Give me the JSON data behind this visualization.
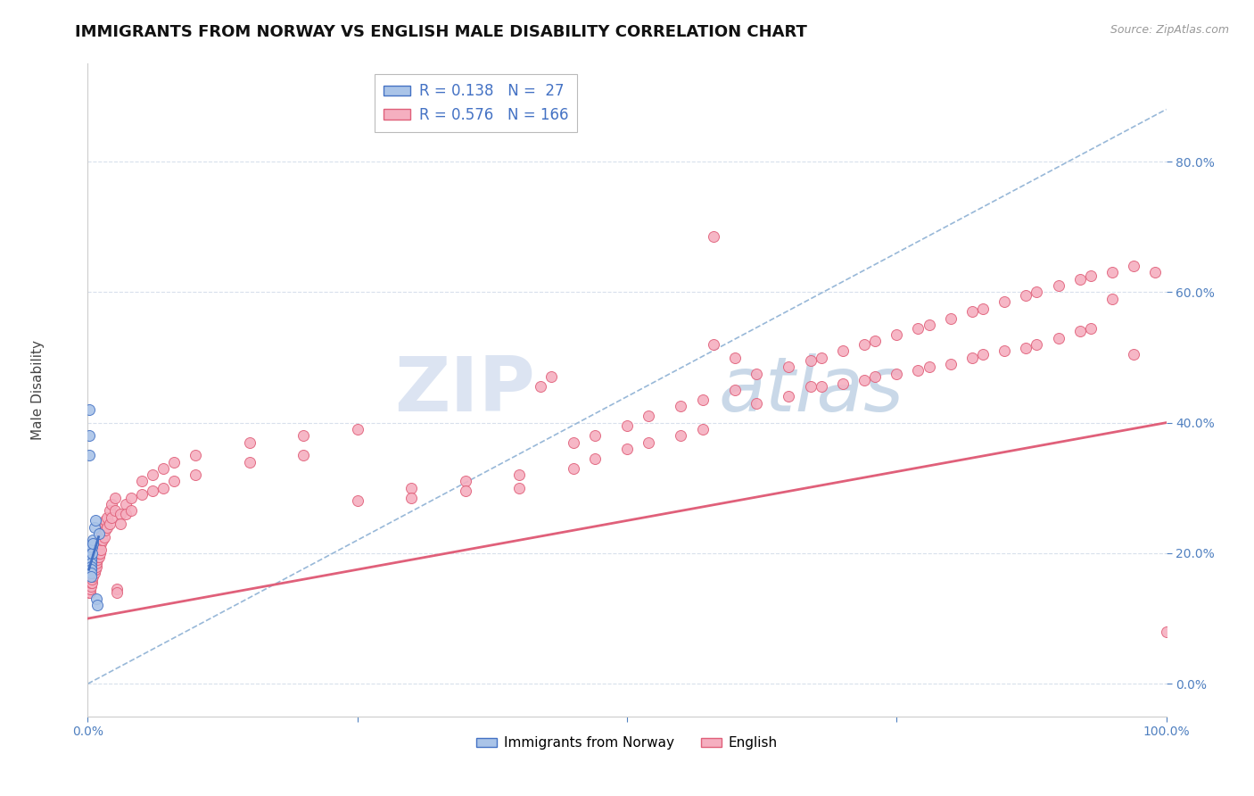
{
  "title": "IMMIGRANTS FROM NORWAY VS ENGLISH MALE DISABILITY CORRELATION CHART",
  "source": "Source: ZipAtlas.com",
  "ylabel": "Male Disability",
  "legend_labels": [
    "Immigrants from Norway",
    "English"
  ],
  "norway_R": 0.138,
  "norway_N": 27,
  "english_R": 0.576,
  "english_N": 166,
  "norway_color": "#aac4e8",
  "english_color": "#f5afc0",
  "norway_line_color": "#4472c4",
  "english_line_color": "#e0607a",
  "dashed_line_color": "#98b8d8",
  "norway_scatter": [
    [
      0.001,
      0.42
    ],
    [
      0.001,
      0.38
    ],
    [
      0.001,
      0.35
    ],
    [
      0.002,
      0.21
    ],
    [
      0.002,
      0.2
    ],
    [
      0.002,
      0.19
    ],
    [
      0.002,
      0.195
    ],
    [
      0.002,
      0.185
    ],
    [
      0.002,
      0.18
    ],
    [
      0.003,
      0.205
    ],
    [
      0.003,
      0.2
    ],
    [
      0.003,
      0.195
    ],
    [
      0.003,
      0.19
    ],
    [
      0.003,
      0.185
    ],
    [
      0.003,
      0.18
    ],
    [
      0.003,
      0.175
    ],
    [
      0.003,
      0.17
    ],
    [
      0.003,
      0.165
    ],
    [
      0.004,
      0.21
    ],
    [
      0.004,
      0.2
    ],
    [
      0.005,
      0.22
    ],
    [
      0.005,
      0.215
    ],
    [
      0.006,
      0.24
    ],
    [
      0.007,
      0.25
    ],
    [
      0.008,
      0.13
    ],
    [
      0.009,
      0.12
    ],
    [
      0.01,
      0.23
    ]
  ],
  "english_scatter": [
    [
      0.001,
      0.15
    ],
    [
      0.001,
      0.14
    ],
    [
      0.001,
      0.16
    ],
    [
      0.001,
      0.155
    ],
    [
      0.001,
      0.17
    ],
    [
      0.001,
      0.145
    ],
    [
      0.002,
      0.16
    ],
    [
      0.002,
      0.15
    ],
    [
      0.002,
      0.14
    ],
    [
      0.002,
      0.165
    ],
    [
      0.002,
      0.155
    ],
    [
      0.002,
      0.145
    ],
    [
      0.003,
      0.17
    ],
    [
      0.003,
      0.16
    ],
    [
      0.003,
      0.15
    ],
    [
      0.003,
      0.175
    ],
    [
      0.003,
      0.165
    ],
    [
      0.003,
      0.155
    ],
    [
      0.004,
      0.175
    ],
    [
      0.004,
      0.165
    ],
    [
      0.004,
      0.155
    ],
    [
      0.004,
      0.18
    ],
    [
      0.004,
      0.17
    ],
    [
      0.004,
      0.16
    ],
    [
      0.005,
      0.185
    ],
    [
      0.005,
      0.175
    ],
    [
      0.005,
      0.165
    ],
    [
      0.005,
      0.19
    ],
    [
      0.005,
      0.18
    ],
    [
      0.005,
      0.17
    ],
    [
      0.006,
      0.19
    ],
    [
      0.006,
      0.18
    ],
    [
      0.006,
      0.17
    ],
    [
      0.006,
      0.195
    ],
    [
      0.006,
      0.185
    ],
    [
      0.006,
      0.175
    ],
    [
      0.007,
      0.195
    ],
    [
      0.007,
      0.185
    ],
    [
      0.007,
      0.175
    ],
    [
      0.007,
      0.2
    ],
    [
      0.007,
      0.19
    ],
    [
      0.007,
      0.18
    ],
    [
      0.008,
      0.2
    ],
    [
      0.008,
      0.19
    ],
    [
      0.008,
      0.18
    ],
    [
      0.008,
      0.205
    ],
    [
      0.008,
      0.195
    ],
    [
      0.008,
      0.185
    ],
    [
      0.009,
      0.21
    ],
    [
      0.009,
      0.2
    ],
    [
      0.009,
      0.19
    ],
    [
      0.009,
      0.215
    ],
    [
      0.009,
      0.205
    ],
    [
      0.009,
      0.195
    ],
    [
      0.01,
      0.215
    ],
    [
      0.01,
      0.205
    ],
    [
      0.01,
      0.195
    ],
    [
      0.01,
      0.22
    ],
    [
      0.01,
      0.21
    ],
    [
      0.01,
      0.2
    ],
    [
      0.011,
      0.22
    ],
    [
      0.011,
      0.21
    ],
    [
      0.011,
      0.2
    ],
    [
      0.012,
      0.225
    ],
    [
      0.012,
      0.215
    ],
    [
      0.012,
      0.205
    ],
    [
      0.013,
      0.23
    ],
    [
      0.013,
      0.22
    ],
    [
      0.014,
      0.235
    ],
    [
      0.014,
      0.22
    ],
    [
      0.015,
      0.24
    ],
    [
      0.015,
      0.225
    ],
    [
      0.016,
      0.25
    ],
    [
      0.016,
      0.235
    ],
    [
      0.018,
      0.255
    ],
    [
      0.018,
      0.24
    ],
    [
      0.02,
      0.265
    ],
    [
      0.02,
      0.245
    ],
    [
      0.022,
      0.275
    ],
    [
      0.022,
      0.255
    ],
    [
      0.025,
      0.285
    ],
    [
      0.025,
      0.265
    ],
    [
      0.027,
      0.145
    ],
    [
      0.027,
      0.14
    ],
    [
      0.03,
      0.26
    ],
    [
      0.03,
      0.245
    ],
    [
      0.035,
      0.275
    ],
    [
      0.035,
      0.26
    ],
    [
      0.04,
      0.285
    ],
    [
      0.04,
      0.265
    ],
    [
      0.05,
      0.31
    ],
    [
      0.05,
      0.29
    ],
    [
      0.06,
      0.32
    ],
    [
      0.06,
      0.295
    ],
    [
      0.07,
      0.33
    ],
    [
      0.07,
      0.3
    ],
    [
      0.08,
      0.34
    ],
    [
      0.08,
      0.31
    ],
    [
      0.1,
      0.35
    ],
    [
      0.1,
      0.32
    ],
    [
      0.15,
      0.37
    ],
    [
      0.15,
      0.34
    ],
    [
      0.2,
      0.38
    ],
    [
      0.2,
      0.35
    ],
    [
      0.25,
      0.28
    ],
    [
      0.25,
      0.39
    ],
    [
      0.3,
      0.3
    ],
    [
      0.3,
      0.285
    ],
    [
      0.35,
      0.31
    ],
    [
      0.35,
      0.295
    ],
    [
      0.4,
      0.32
    ],
    [
      0.4,
      0.3
    ],
    [
      0.42,
      0.455
    ],
    [
      0.43,
      0.47
    ],
    [
      0.45,
      0.37
    ],
    [
      0.45,
      0.33
    ],
    [
      0.47,
      0.38
    ],
    [
      0.47,
      0.345
    ],
    [
      0.5,
      0.395
    ],
    [
      0.5,
      0.36
    ],
    [
      0.52,
      0.41
    ],
    [
      0.52,
      0.37
    ],
    [
      0.55,
      0.425
    ],
    [
      0.55,
      0.38
    ],
    [
      0.57,
      0.435
    ],
    [
      0.57,
      0.39
    ],
    [
      0.58,
      0.685
    ],
    [
      0.58,
      0.52
    ],
    [
      0.6,
      0.5
    ],
    [
      0.6,
      0.45
    ],
    [
      0.62,
      0.475
    ],
    [
      0.62,
      0.43
    ],
    [
      0.65,
      0.485
    ],
    [
      0.65,
      0.44
    ],
    [
      0.67,
      0.495
    ],
    [
      0.67,
      0.455
    ],
    [
      0.68,
      0.5
    ],
    [
      0.68,
      0.455
    ],
    [
      0.7,
      0.51
    ],
    [
      0.7,
      0.46
    ],
    [
      0.72,
      0.52
    ],
    [
      0.72,
      0.465
    ],
    [
      0.73,
      0.525
    ],
    [
      0.73,
      0.47
    ],
    [
      0.75,
      0.535
    ],
    [
      0.75,
      0.475
    ],
    [
      0.77,
      0.545
    ],
    [
      0.77,
      0.48
    ],
    [
      0.78,
      0.55
    ],
    [
      0.78,
      0.485
    ],
    [
      0.8,
      0.56
    ],
    [
      0.8,
      0.49
    ],
    [
      0.82,
      0.57
    ],
    [
      0.82,
      0.5
    ],
    [
      0.83,
      0.575
    ],
    [
      0.83,
      0.505
    ],
    [
      0.85,
      0.585
    ],
    [
      0.85,
      0.51
    ],
    [
      0.87,
      0.595
    ],
    [
      0.87,
      0.515
    ],
    [
      0.88,
      0.6
    ],
    [
      0.88,
      0.52
    ],
    [
      0.9,
      0.61
    ],
    [
      0.9,
      0.53
    ],
    [
      0.92,
      0.62
    ],
    [
      0.92,
      0.54
    ],
    [
      0.93,
      0.625
    ],
    [
      0.93,
      0.545
    ],
    [
      0.95,
      0.59
    ],
    [
      0.95,
      0.63
    ],
    [
      0.97,
      0.505
    ],
    [
      0.97,
      0.64
    ],
    [
      0.99,
      0.63
    ],
    [
      1.0,
      0.08
    ]
  ],
  "xlim": [
    0,
    1.0
  ],
  "ylim": [
    -0.05,
    0.95
  ],
  "yticks": [
    0.0,
    0.2,
    0.4,
    0.6,
    0.8
  ],
  "ytick_labels": [
    "0.0%",
    "20.0%",
    "40.0%",
    "60.0%",
    "80.0%"
  ],
  "xticks": [
    0.0,
    0.25,
    0.5,
    0.75,
    1.0
  ],
  "xtick_labels": [
    "0.0%",
    "",
    "",
    "",
    "100.0%"
  ],
  "watermark_zip": "ZIP",
  "watermark_atlas": "atlas",
  "background_color": "#ffffff",
  "grid_color": "#d8e0ec",
  "title_fontsize": 13,
  "axis_label_fontsize": 11,
  "tick_fontsize": 10
}
